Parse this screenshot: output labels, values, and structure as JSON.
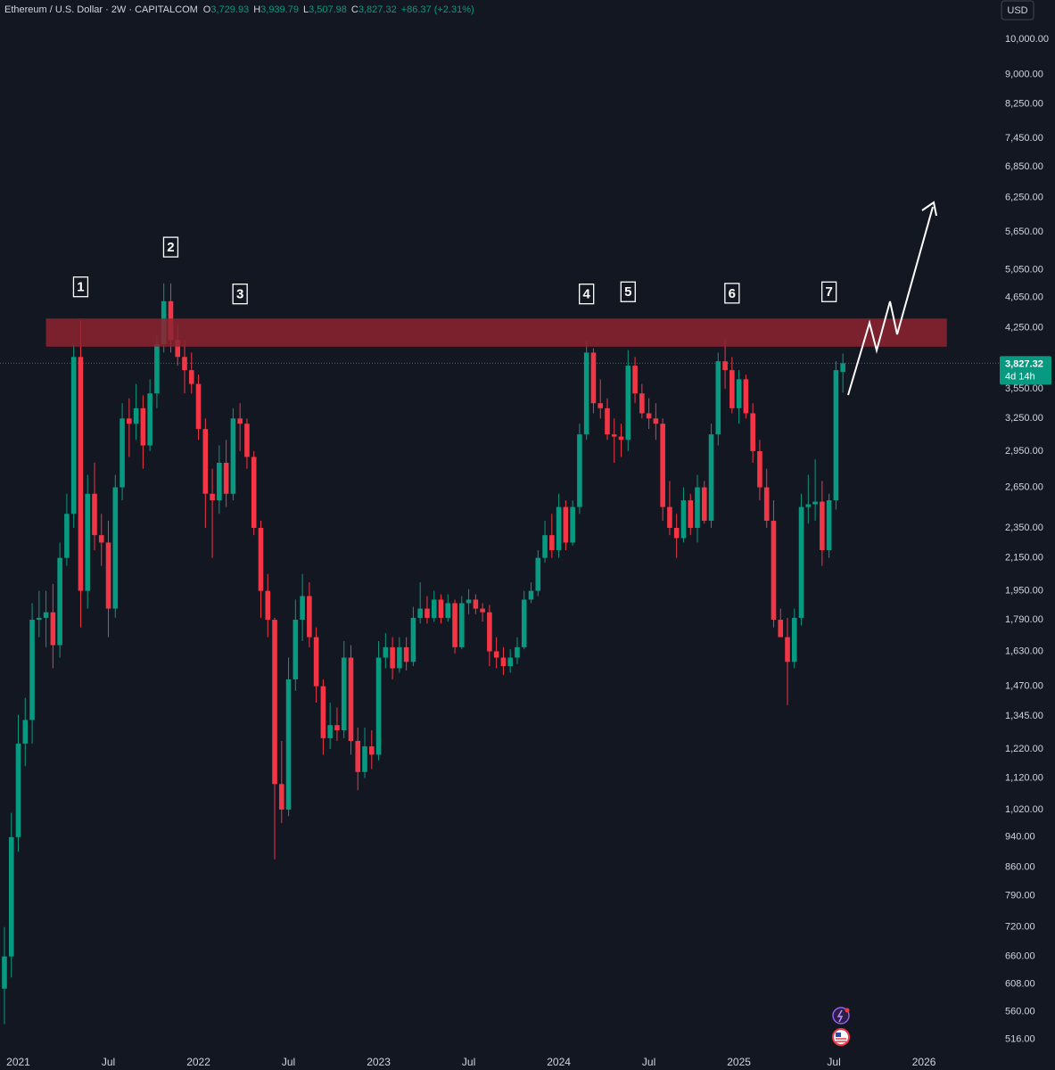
{
  "chart_data": {
    "type": "candlestick",
    "title": "Ethereum / U.S. Dollar · 2W · CAPITALCOM",
    "ohlc_header": [
      {
        "key": "O",
        "value": "3,729.93"
      },
      {
        "key": "H",
        "value": "3,939.79"
      },
      {
        "key": "L",
        "value": "3,507.98"
      },
      {
        "key": "C",
        "value": "3,827.32"
      }
    ],
    "change": "+86.37 (+2.31%)",
    "currency": "USD",
    "last_price_label": "3,827.32",
    "countdown": "4d 14h",
    "up_color": "#089981",
    "down_color": "#f23645",
    "log_scale": true,
    "grid": false,
    "open": [
      600,
      660,
      940,
      1240,
      1330,
      1790,
      1800,
      1830,
      1660,
      2150,
      2450,
      3900,
      1950,
      2600,
      2300,
      2250,
      1850,
      2650,
      3250,
      3200,
      3350,
      3000,
      3500,
      4050,
      4600,
      4100,
      3900,
      3750,
      3600,
      3150,
      2600,
      2550,
      2850,
      2600,
      3250,
      3200,
      2900,
      2350,
      1950,
      1790,
      1100,
      1020,
      1500,
      1790,
      1920,
      1700,
      1470,
      1260,
      1310,
      1290,
      1600,
      1250,
      1140,
      1230,
      1200,
      1600,
      1650,
      1550,
      1650,
      1580,
      1800,
      1850,
      1800,
      1900,
      1800,
      1880,
      1650,
      1880,
      1900,
      1850,
      1830,
      1630,
      1600,
      1560,
      1600,
      1650,
      1900,
      1950,
      2150,
      2300,
      2200,
      2500,
      2250,
      2500,
      3100,
      3950,
      3400,
      3350,
      3100,
      3080,
      3050,
      3800,
      3500,
      3300,
      3250,
      3200,
      2500,
      2350,
      2280,
      2550,
      2350,
      2650,
      2400,
      3100,
      3850,
      3750,
      3350,
      3650,
      3300,
      2950,
      2650,
      2400,
      1790,
      1700,
      1580,
      1800,
      2500,
      2520,
      2540,
      2200,
      2550,
      3729.93
    ],
    "high": [
      720,
      1010,
      1350,
      1420,
      1880,
      1950,
      1950,
      1990,
      2250,
      2600,
      4050,
      4350,
      2750,
      2850,
      2450,
      2400,
      2750,
      3400,
      3450,
      3600,
      3480,
      3650,
      4150,
      4850,
      4850,
      4300,
      4100,
      3950,
      3700,
      3250,
      2800,
      3000,
      3050,
      3350,
      3400,
      3250,
      2950,
      2400,
      2050,
      1800,
      1250,
      1600,
      1900,
      2050,
      2000,
      1750,
      1500,
      1400,
      1380,
      1680,
      1660,
      1300,
      1300,
      1290,
      1680,
      1720,
      1700,
      1700,
      1700,
      1860,
      2000,
      1920,
      1950,
      1930,
      1930,
      1900,
      1920,
      1960,
      1930,
      1880,
      1870,
      1700,
      1650,
      1640,
      1700,
      1950,
      2000,
      2200,
      2400,
      2450,
      2600,
      2550,
      2550,
      3200,
      4090,
      4000,
      3650,
      3450,
      3250,
      3200,
      3980,
      3900,
      3600,
      3450,
      3400,
      3250,
      2700,
      2450,
      2650,
      2600,
      2750,
      2700,
      3200,
      3950,
      4110,
      3900,
      3750,
      3700,
      3400,
      3050,
      2800,
      2550,
      1850,
      1800,
      1850,
      2600,
      2750,
      2880,
      2700,
      2600,
      3850,
      3939.79
    ],
    "low": [
      540,
      620,
      900,
      1160,
      1240,
      1700,
      1650,
      1550,
      1600,
      2100,
      2350,
      1750,
      1850,
      2200,
      2100,
      1700,
      1800,
      2550,
      2900,
      3050,
      2800,
      2950,
      3350,
      3950,
      3950,
      3800,
      3500,
      3500,
      3050,
      2350,
      2150,
      2450,
      2500,
      2550,
      2950,
      2800,
      2300,
      1800,
      1700,
      880,
      980,
      1000,
      1450,
      1680,
      1650,
      1400,
      1200,
      1220,
      1250,
      1260,
      1200,
      1080,
      1120,
      1150,
      1180,
      1550,
      1500,
      1530,
      1540,
      1560,
      1770,
      1770,
      1780,
      1770,
      1780,
      1620,
      1640,
      1820,
      1820,
      1780,
      1560,
      1550,
      1520,
      1530,
      1570,
      1640,
      1880,
      1920,
      2120,
      2150,
      2150,
      2200,
      2230,
      2450,
      3050,
      3300,
      3250,
      3050,
      2850,
      2900,
      2950,
      3400,
      3250,
      3150,
      3050,
      2400,
      2300,
      2150,
      2250,
      2300,
      2250,
      2380,
      2350,
      3000,
      3550,
      3300,
      3200,
      3250,
      2850,
      2550,
      2350,
      1750,
      1700,
      1390,
      1550,
      1760,
      2380,
      2400,
      2100,
      2150,
      2480,
      3507.98
    ],
    "close": [
      660,
      940,
      1240,
      1330,
      1790,
      1800,
      1830,
      1660,
      2150,
      2450,
      3900,
      1950,
      2600,
      2300,
      2250,
      1850,
      2650,
      3250,
      3200,
      3350,
      3000,
      3500,
      4050,
      4600,
      4100,
      3900,
      3750,
      3600,
      3150,
      2600,
      2550,
      2850,
      2600,
      3250,
      3200,
      2900,
      2350,
      1950,
      1790,
      1100,
      1020,
      1500,
      1790,
      1920,
      1700,
      1470,
      1260,
      1310,
      1290,
      1600,
      1250,
      1140,
      1230,
      1200,
      1600,
      1650,
      1550,
      1650,
      1580,
      1800,
      1850,
      1800,
      1900,
      1800,
      1880,
      1650,
      1880,
      1900,
      1850,
      1830,
      1630,
      1600,
      1560,
      1600,
      1650,
      1900,
      1950,
      2150,
      2300,
      2200,
      2500,
      2250,
      2500,
      3100,
      3950,
      3400,
      3350,
      3100,
      3080,
      3050,
      3800,
      3500,
      3300,
      3250,
      3200,
      2500,
      2350,
      2280,
      2550,
      2350,
      2650,
      2400,
      3100,
      3850,
      3750,
      3350,
      3650,
      3300,
      2950,
      2650,
      2400,
      1790,
      1700,
      1580,
      1800,
      2500,
      2520,
      2540,
      2200,
      2550,
      3750,
      3827.32
    ],
    "xlim": [
      -0.64,
      143.5
    ],
    "xticks": [
      {
        "value": 2,
        "label": "2021"
      },
      {
        "value": 15,
        "label": "Jul"
      },
      {
        "value": 28,
        "label": "2022"
      },
      {
        "value": 41,
        "label": "Jul"
      },
      {
        "value": 54,
        "label": "2023"
      },
      {
        "value": 67,
        "label": "Jul"
      },
      {
        "value": 80,
        "label": "2024"
      },
      {
        "value": 93,
        "label": "Jul"
      },
      {
        "value": 106,
        "label": "2025"
      },
      {
        "value": 119.7,
        "label": "Jul"
      },
      {
        "value": 132.7,
        "label": "2026"
      }
    ],
    "ylim": [
      497,
      11230
    ],
    "yticks": [
      {
        "value": 10000,
        "label": "10,000.00"
      },
      {
        "value": 9000,
        "label": "9,000.00"
      },
      {
        "value": 8250,
        "label": "8,250.00"
      },
      {
        "value": 7450,
        "label": "7,450.00"
      },
      {
        "value": 6850,
        "label": "6,850.00"
      },
      {
        "value": 6250,
        "label": "6,250.00"
      },
      {
        "value": 5650,
        "label": "5,650.00"
      },
      {
        "value": 5050,
        "label": "5,050.00"
      },
      {
        "value": 4650,
        "label": "4,650.00"
      },
      {
        "value": 4250,
        "label": "4,250.00"
      },
      {
        "value": 3550,
        "label": "3,550.00"
      },
      {
        "value": 3250,
        "label": "3,250.00"
      },
      {
        "value": 2950,
        "label": "2,950.00"
      },
      {
        "value": 2650,
        "label": "2,650.00"
      },
      {
        "value": 2350,
        "label": "2,350.00"
      },
      {
        "value": 2150,
        "label": "2,150.00"
      },
      {
        "value": 1950,
        "label": "1,950.00"
      },
      {
        "value": 1790,
        "label": "1,790.00"
      },
      {
        "value": 1630,
        "label": "1,630.00"
      },
      {
        "value": 1470,
        "label": "1,470.00"
      },
      {
        "value": 1345,
        "label": "1,345.00"
      },
      {
        "value": 1220,
        "label": "1,220.00"
      },
      {
        "value": 1120,
        "label": "1,120.00"
      },
      {
        "value": 1020,
        "label": "1,020.00"
      },
      {
        "value": 940,
        "label": "940.00"
      },
      {
        "value": 860,
        "label": "860.00"
      },
      {
        "value": 790,
        "label": "790.00"
      },
      {
        "value": 720,
        "label": "720.00"
      },
      {
        "value": 660,
        "label": "660.00"
      },
      {
        "value": 608,
        "label": "608.00"
      },
      {
        "value": 560,
        "label": "560.00"
      },
      {
        "value": 516,
        "label": "516.00"
      }
    ],
    "zone": {
      "from": 4020,
      "to": 4370,
      "x": [
        6,
        136
      ],
      "color": "#8e2330"
    },
    "annotations": [
      {
        "text": "1",
        "x": 11,
        "y": 4800
      },
      {
        "text": "2",
        "x": 24,
        "y": 5400
      },
      {
        "text": "3",
        "x": 34,
        "y": 4700
      },
      {
        "text": "4",
        "x": 84,
        "y": 4700
      },
      {
        "text": "5",
        "x": 90,
        "y": 4730
      },
      {
        "text": "6",
        "x": 105,
        "y": 4710
      },
      {
        "text": "7",
        "x": 119,
        "y": 4730
      }
    ]
  }
}
